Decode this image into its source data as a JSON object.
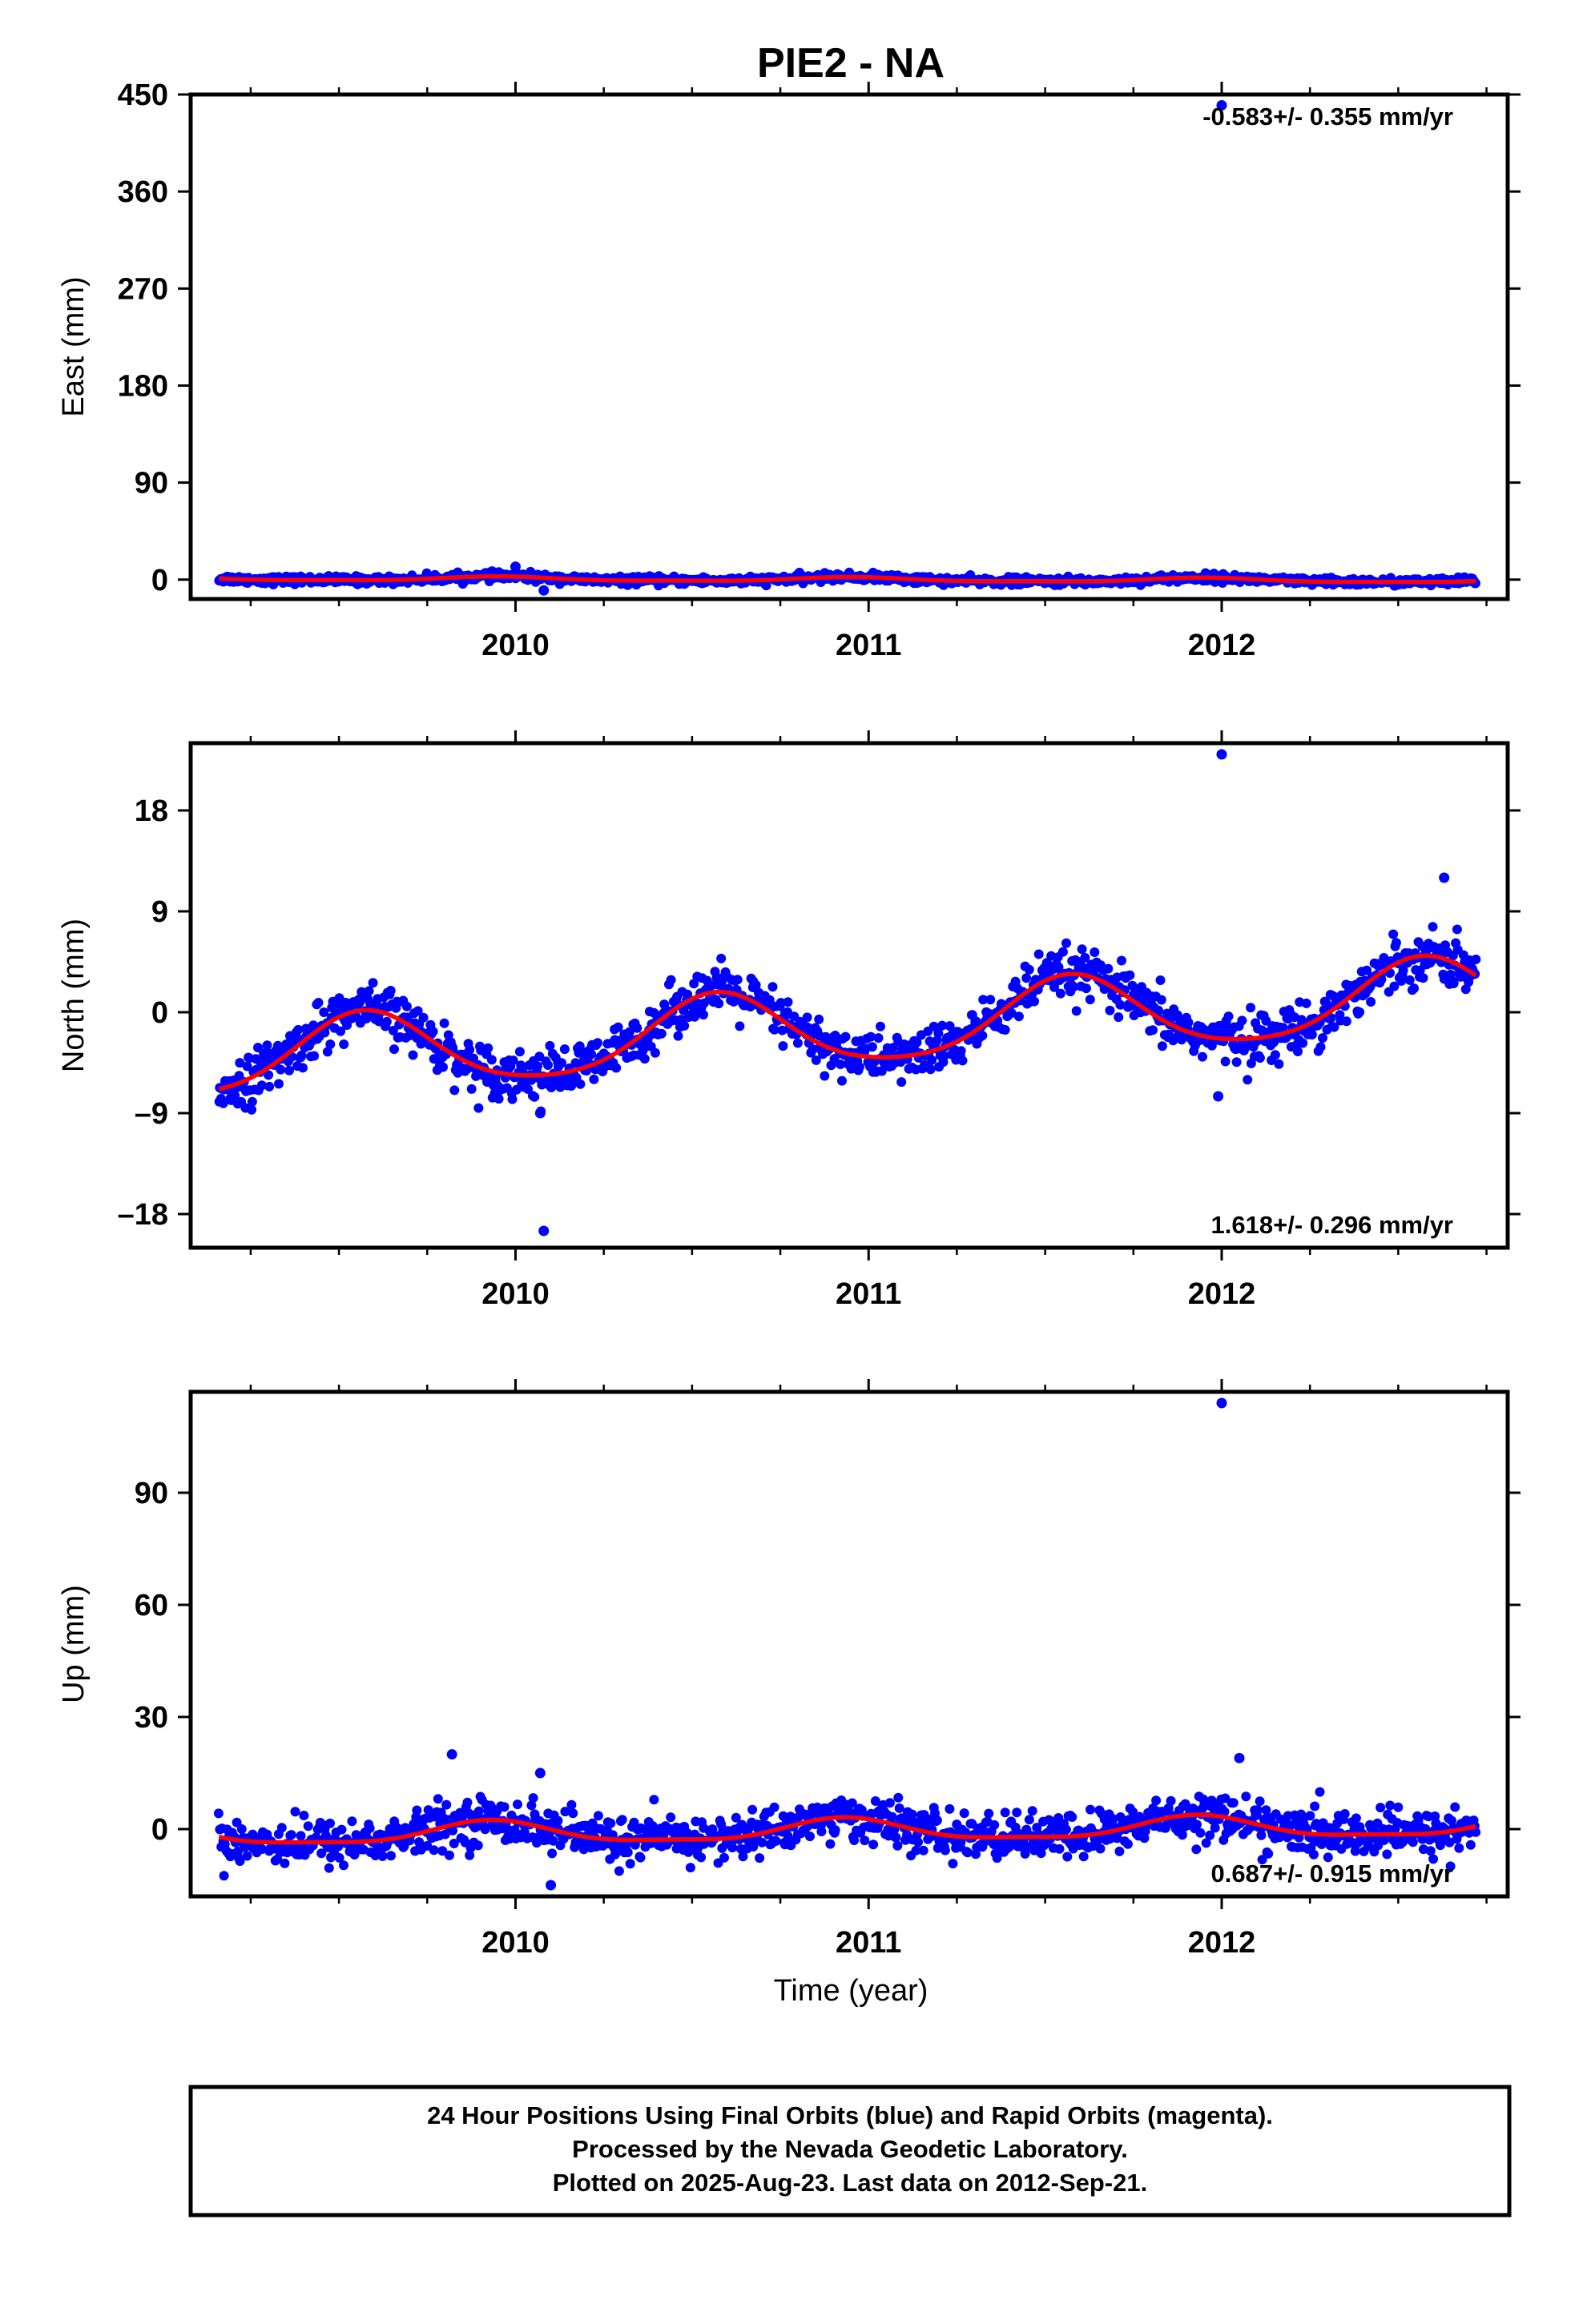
{
  "title": "PIE2 - NA",
  "xlabel": "Time (year)",
  "footer": {
    "lines": [
      "24 Hour Positions Using Final Orbits (blue) and Rapid Orbits (magenta).",
      "Processed by the Nevada Geodetic Laboratory.",
      "Plotted on 2025-Aug-23. Last data on 2012-Sep-21."
    ]
  },
  "colors": {
    "points": "#0000ff",
    "fit": "#ff0000",
    "frame": "#000000"
  },
  "chart_data": [
    {
      "type": "scatter",
      "component": "east",
      "ylabel": "East (mm)",
      "xlim": [
        2009.08,
        2012.81
      ],
      "ylim": [
        -18,
        450
      ],
      "yticks": [
        0,
        90,
        180,
        270,
        360,
        450
      ],
      "ytick_labels": [
        "0",
        "90",
        "180",
        "270",
        "360",
        "450"
      ],
      "xticks": [
        2010,
        2011,
        2012
      ],
      "xtick_labels": [
        "2010",
        "2011",
        "2012"
      ],
      "rate_text": "-0.583+/- 0.355 mm/yr",
      "rate_position": "top-right",
      "x_range": [
        2009.16,
        2012.72
      ],
      "fit": {
        "trend_mm_per_yr": -0.583,
        "offset": 0.0,
        "annual_amp": 1.8,
        "annual_phase_peak": 0.95,
        "semiannual_amp": 0.6
      },
      "scatter_sd": 1.8,
      "outliers": [
        {
          "x": 2012.0,
          "y": 440
        },
        {
          "x": 2010.08,
          "y": -10
        },
        {
          "x": 2010.0,
          "y": 12
        }
      ]
    },
    {
      "type": "scatter",
      "component": "north",
      "ylabel": "North (mm)",
      "xlim": [
        2009.08,
        2012.81
      ],
      "ylim": [
        -21,
        24
      ],
      "yticks": [
        -18,
        -9,
        0,
        9,
        18
      ],
      "ytick_labels": [
        "–18",
        "–9",
        "0",
        "9",
        "18"
      ],
      "xticks": [
        2010,
        2011,
        2012
      ],
      "xtick_labels": [
        "2010",
        "2011",
        "2012"
      ],
      "rate_text": "1.618+/- 0.296 mm/yr",
      "rate_position": "bottom-right",
      "x_range": [
        2009.16,
        2012.72
      ],
      "fit": {
        "trend_mm_per_yr": 1.618,
        "offset": -1.3,
        "annual_amp": 3.3,
        "annual_phase_peak": 0.57,
        "semiannual_amp": 0.5
      },
      "scatter_sd": 1.1,
      "outliers": [
        {
          "x": 2012.0,
          "y": 23
        },
        {
          "x": 2010.08,
          "y": -19.5
        },
        {
          "x": 2011.99,
          "y": -7.5
        },
        {
          "x": 2012.63,
          "y": 12
        },
        {
          "x": 2010.07,
          "y": -9
        }
      ]
    },
    {
      "type": "scatter",
      "component": "up",
      "ylabel": "Up (mm)",
      "xlim": [
        2009.08,
        2012.81
      ],
      "ylim": [
        -18,
        117
      ],
      "yticks": [
        0,
        30,
        60,
        90
      ],
      "ytick_labels": [
        "0",
        "30",
        "60",
        "90"
      ],
      "xticks": [
        2010,
        2011,
        2012
      ],
      "xtick_labels": [
        "2010",
        "2011",
        "2012"
      ],
      "rate_text": "0.687+/- 0.915 mm/yr",
      "rate_position": "bottom-right",
      "x_range": [
        2009.16,
        2012.72
      ],
      "fit": {
        "trend_mm_per_yr": 0.687,
        "offset": -0.4,
        "annual_amp": 2.8,
        "annual_phase_peak": 0.93,
        "semiannual_amp": 0.8
      },
      "scatter_sd": 3.0,
      "outliers": [
        {
          "x": 2012.0,
          "y": 114
        },
        {
          "x": 2009.82,
          "y": 20
        },
        {
          "x": 2012.05,
          "y": 19
        },
        {
          "x": 2010.1,
          "y": -15
        },
        {
          "x": 2010.07,
          "y": 15
        }
      ]
    }
  ]
}
